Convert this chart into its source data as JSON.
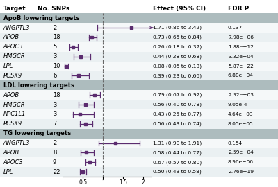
{
  "groups": [
    {
      "label": "ApoB lowering targets",
      "rows": [
        {
          "target": "ANGPTL3",
          "snps": "2",
          "effect": 1.71,
          "ci_low": 0.86,
          "ci_high": 3.42,
          "effect_str": "1.71 (0.86 to 3.42)",
          "fdr": "0.137"
        },
        {
          "target": "APOB",
          "snps": "18",
          "effect": 0.73,
          "ci_low": 0.65,
          "ci_high": 0.84,
          "effect_str": "0.73 (0.65 to 0.84)",
          "fdr": "7.98e−06"
        },
        {
          "target": "APOC3",
          "snps": "5",
          "effect": 0.26,
          "ci_low": 0.18,
          "ci_high": 0.37,
          "effect_str": "0.26 (0.18 to 0.37)",
          "fdr": "1.88e−12"
        },
        {
          "target": "HMGCR",
          "snps": "3",
          "effect": 0.44,
          "ci_low": 0.28,
          "ci_high": 0.68,
          "effect_str": "0.44 (0.28 to 0.68)",
          "fdr": "3.32e−04"
        },
        {
          "target": "LPL",
          "snps": "10",
          "effect": 0.08,
          "ci_low": 0.05,
          "ci_high": 0.13,
          "effect_str": "0.08 (0.05 to 0.13)",
          "fdr": "5.87e−22"
        },
        {
          "target": "PCSK9",
          "snps": "6",
          "effect": 0.39,
          "ci_low": 0.23,
          "ci_high": 0.66,
          "effect_str": "0.39 (0.23 to 0.66)",
          "fdr": "6.88e−04"
        }
      ]
    },
    {
      "label": "LDL lowering targets",
      "rows": [
        {
          "target": "APOB",
          "snps": "18",
          "effect": 0.79,
          "ci_low": 0.67,
          "ci_high": 0.92,
          "effect_str": "0.79 (0.67 to 0.92)",
          "fdr": "2.92e−03"
        },
        {
          "target": "HMGCR",
          "snps": "3",
          "effect": 0.56,
          "ci_low": 0.4,
          "ci_high": 0.78,
          "effect_str": "0.56 (0.40 to 0.78)",
          "fdr": "9.05e-4"
        },
        {
          "target": "NPC1L1",
          "snps": "3",
          "effect": 0.43,
          "ci_low": 0.25,
          "ci_high": 0.77,
          "effect_str": "0.43 (0.25 to 0.77)",
          "fdr": "4.64e−03"
        },
        {
          "target": "PCSK9",
          "snps": "7",
          "effect": 0.56,
          "ci_low": 0.43,
          "ci_high": 0.74,
          "effect_str": "0.56 (0.43 to 0.74)",
          "fdr": "8.05e−05"
        }
      ]
    },
    {
      "label": "TG lowering targets",
      "rows": [
        {
          "target": "ANGPTL3",
          "snps": "2",
          "effect": 1.31,
          "ci_low": 0.9,
          "ci_high": 1.91,
          "effect_str": "1.31 (0.90 to 1.91)",
          "fdr": "0.154"
        },
        {
          "target": "APOB",
          "snps": "8",
          "effect": 0.58,
          "ci_low": 0.44,
          "ci_high": 0.77,
          "effect_str": "0.58 (0.44 to 0.77)",
          "fdr": "2.59e−04"
        },
        {
          "target": "APOC3",
          "snps": "9",
          "effect": 0.67,
          "ci_low": 0.57,
          "ci_high": 0.8,
          "effect_str": "0.67 (0.57 to 0.80)",
          "fdr": "8.96e−06"
        },
        {
          "target": "LPL",
          "snps": "22",
          "effect": 0.5,
          "ci_low": 0.43,
          "ci_high": 0.58,
          "effect_str": "0.50 (0.43 to 0.58)",
          "fdr": "2.76e−19"
        }
      ]
    }
  ],
  "xmin": 0.0,
  "xmax": 2.2,
  "xticks": [
    0.5,
    1.0,
    1.5,
    2.0
  ],
  "xticklabels": [
    "0.5",
    "1",
    "1.5",
    "2"
  ],
  "ref_line": 1.0,
  "header_target": "Target",
  "header_snps": "No. SNPs",
  "header_effect": "Effect (95% CI)",
  "header_fdr": "FDR P",
  "point_color": "#5B2C6F",
  "line_color": "#5B2C6F",
  "group_bg_color": "#ADBCBE",
  "row_alt_color": "#EAF0F2",
  "row_color": "#F5F8F9",
  "header_bg": "#FFFFFF"
}
